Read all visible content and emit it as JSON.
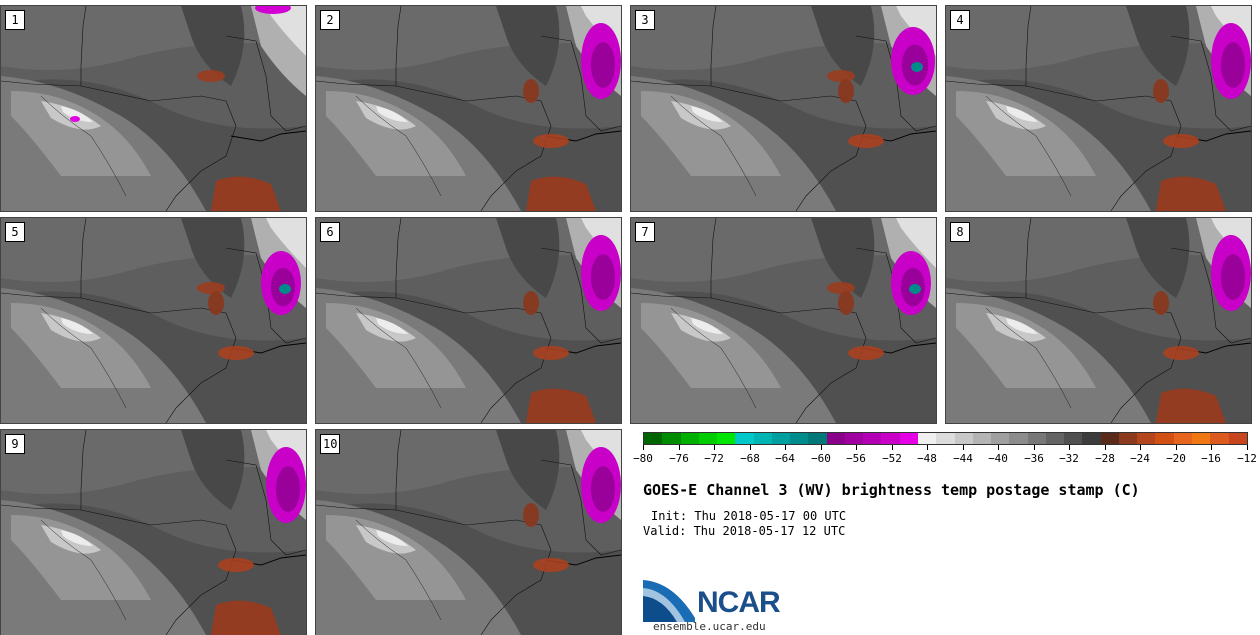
{
  "panels": [
    {
      "label": "1",
      "purple": "top-edge",
      "orange": [
        1,
        4
      ]
    },
    {
      "label": "2",
      "purple": "right",
      "orange": [
        2,
        3,
        4
      ]
    },
    {
      "label": "3",
      "purple": "right-large",
      "orange": [
        1,
        2,
        3
      ]
    },
    {
      "label": "4",
      "purple": "right",
      "orange": [
        2,
        3,
        4
      ]
    },
    {
      "label": "5",
      "purple": "right-mid",
      "orange": [
        1,
        2,
        3
      ]
    },
    {
      "label": "6",
      "purple": "right",
      "orange": [
        2,
        3,
        4
      ]
    },
    {
      "label": "7",
      "purple": "right-mid",
      "orange": [
        1,
        2,
        3
      ]
    },
    {
      "label": "8",
      "purple": "right",
      "orange": [
        2,
        3,
        4
      ]
    },
    {
      "label": "9",
      "purple": "right",
      "orange": [
        2,
        4
      ]
    },
    {
      "label": "10",
      "purple": "right",
      "orange": [
        2,
        3
      ]
    }
  ],
  "colorbar": {
    "colors": [
      "#006400",
      "#008b00",
      "#00b000",
      "#00cd00",
      "#00e600",
      "#00c8c8",
      "#00b4b4",
      "#00a0a0",
      "#008c8c",
      "#007878",
      "#8b008b",
      "#a000a0",
      "#b400b4",
      "#c800c8",
      "#e600e6",
      "#f0f0f0",
      "#dcdcdc",
      "#c8c8c8",
      "#b4b4b4",
      "#a0a0a0",
      "#8c8c8c",
      "#787878",
      "#646464",
      "#505050",
      "#3c3c3c",
      "#5a2a1a",
      "#8b3a1e",
      "#b4461e",
      "#d25014",
      "#e6641e",
      "#f07814",
      "#dc5a1e",
      "#c8461e"
    ],
    "tick_labels": [
      "−80",
      "−76",
      "−72",
      "−68",
      "−64",
      "−60",
      "−56",
      "−52",
      "−48",
      "−44",
      "−40",
      "−36",
      "−32",
      "−28",
      "−24",
      "−20",
      "−16",
      "−12"
    ]
  },
  "title": "GOES-E Channel 3 (WV) brightness temp postage stamp (C)",
  "init": "Init: Thu 2018-05-17 00 UTC",
  "valid": "Valid: Thu 2018-05-17 12 UTC",
  "logo_text": "NCAR",
  "site": "ensemble.ucar.edu"
}
